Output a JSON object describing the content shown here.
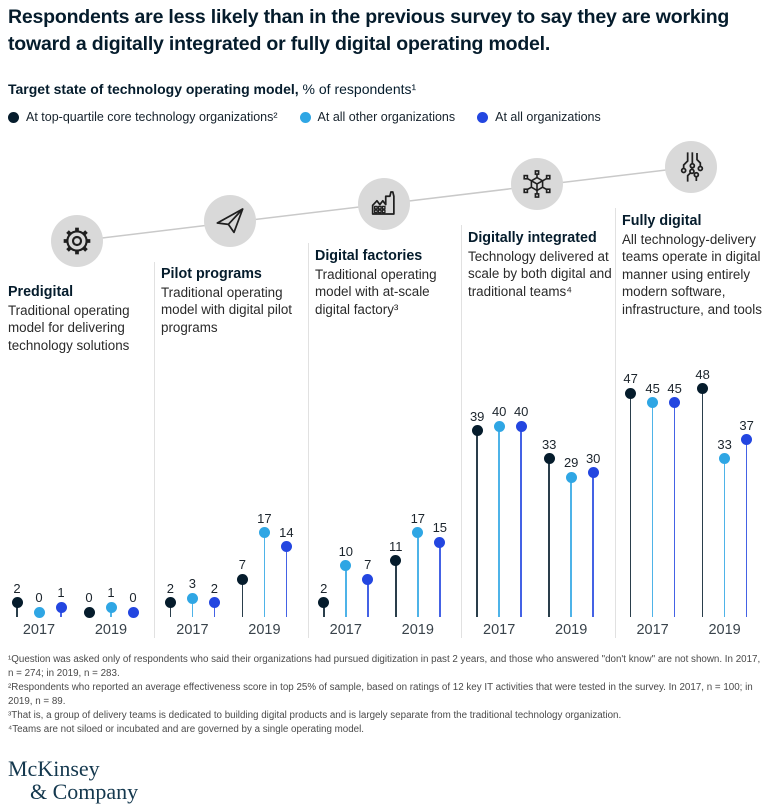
{
  "header": {
    "title": "Respondents are less likely than in the previous survey to say they are working toward a digitally integrated or fully digital operating model.",
    "subtitle_bold": "Target state of technology operating model,",
    "subtitle_rest": " % of respondents¹"
  },
  "legend": [
    {
      "label": "At top-quartile core technology organizations²",
      "color": "#051c2c"
    },
    {
      "label": "At all other organizations",
      "color": "#2fa6e4"
    },
    {
      "label": "At all organizations",
      "color": "#2346e0"
    }
  ],
  "chart_data": {
    "type": "lollipop",
    "title": "Target state of technology operating model",
    "unit": "% of respondents",
    "ylim": [
      0,
      50
    ],
    "series": [
      "At top-quartile core technology organizations",
      "At all other organizations",
      "At all organizations"
    ],
    "series_colors": [
      "#051c2c",
      "#2fa6e4",
      "#2346e0"
    ],
    "years": [
      "2017",
      "2019"
    ],
    "sections": [
      {
        "name": "Predigital",
        "icon": "gear-icon",
        "description": "Traditional operating model for delivering technology solutions",
        "values": {
          "2017": [
            2,
            0,
            1
          ],
          "2019": [
            0,
            1,
            0
          ]
        }
      },
      {
        "name": "Pilot programs",
        "icon": "paper-plane-icon",
        "description": "Traditional operating model with digital pilot programs",
        "values": {
          "2017": [
            2,
            3,
            2
          ],
          "2019": [
            7,
            17,
            14
          ]
        }
      },
      {
        "name": "Digital factories",
        "icon": "factory-icon",
        "description": "Traditional operating model with at-scale digital factory³",
        "values": {
          "2017": [
            2,
            10,
            7
          ],
          "2019": [
            11,
            17,
            15
          ]
        }
      },
      {
        "name": "Digitally integrated",
        "icon": "cube-network-icon",
        "description": "Technology delivered at scale by both digital and traditional teams⁴",
        "values": {
          "2017": [
            39,
            40,
            40
          ],
          "2019": [
            33,
            29,
            30
          ]
        }
      },
      {
        "name": "Fully digital",
        "icon": "circuit-icon",
        "description": "All technology-delivery teams operate in digital manner using entirely modern software, infrastructure, and tools",
        "values": {
          "2017": [
            47,
            45,
            45
          ],
          "2019": [
            48,
            33,
            37
          ]
        }
      }
    ]
  },
  "footnotes": [
    "¹Question was asked only of respondents who said their organizations had pursued digitization in past 2 years, and those who answered \"don't know\" are not shown. In 2017, n = 274; in 2019, n = 283.",
    "²Respondents who reported an average effectiveness score in top 25% of sample, based on ratings of 12 key IT activities that were tested in the survey. In 2017, n = 100; in 2019, n = 89.",
    "³That is, a group of delivery teams is dedicated to building digital products and is largely separate from the traditional technology organization.",
    "⁴Teams are not siloed or incubated and are governed by a single operating model."
  ],
  "logo": {
    "line1": "McKinsey",
    "line2": "& Company"
  }
}
